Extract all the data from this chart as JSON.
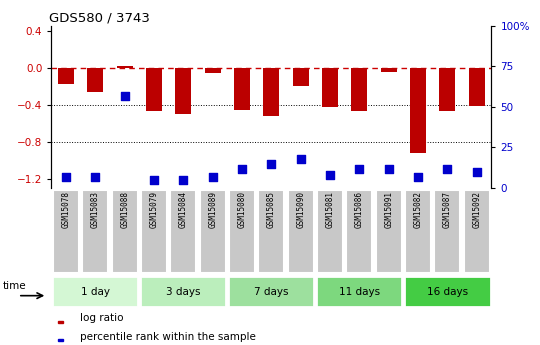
{
  "title": "GDS580 / 3743",
  "samples": [
    "GSM15078",
    "GSM15083",
    "GSM15088",
    "GSM15079",
    "GSM15084",
    "GSM15089",
    "GSM15080",
    "GSM15085",
    "GSM15090",
    "GSM15081",
    "GSM15086",
    "GSM15091",
    "GSM15082",
    "GSM15087",
    "GSM15092"
  ],
  "log_ratio": [
    -0.18,
    -0.26,
    0.02,
    -0.47,
    -0.5,
    -0.06,
    -0.46,
    -0.52,
    -0.2,
    -0.43,
    -0.47,
    -0.05,
    -0.92,
    -0.47,
    -0.42
  ],
  "percentile_rank": [
    7,
    7,
    57,
    5,
    5,
    7,
    12,
    15,
    18,
    8,
    12,
    12,
    7,
    12,
    10
  ],
  "groups": [
    {
      "label": "1 day",
      "count": 3,
      "color": "#d4f7d4"
    },
    {
      "label": "3 days",
      "count": 3,
      "color": "#bbeebc"
    },
    {
      "label": "7 days",
      "count": 3,
      "color": "#9de09e"
    },
    {
      "label": "11 days",
      "count": 3,
      "color": "#7dd87e"
    },
    {
      "label": "16 days",
      "count": 3,
      "color": "#44cc44"
    }
  ],
  "bar_color": "#bb0000",
  "dot_color": "#0000cc",
  "dashed_color": "#cc0000",
  "left_ylim": [
    -1.3,
    0.45
  ],
  "right_ylim": [
    0,
    100
  ],
  "left_yticks": [
    -1.2,
    -0.8,
    -0.4,
    0,
    0.4
  ],
  "right_yticks": [
    0,
    25,
    50,
    75,
    100
  ],
  "right_yticklabels": [
    "0",
    "25",
    "50",
    "75",
    "100%"
  ],
  "bar_width": 0.55,
  "dot_size": 30,
  "dot_marker": "s",
  "gray_box_color": "#c8c8c8",
  "gray_box_edge": "#aaaaaa"
}
